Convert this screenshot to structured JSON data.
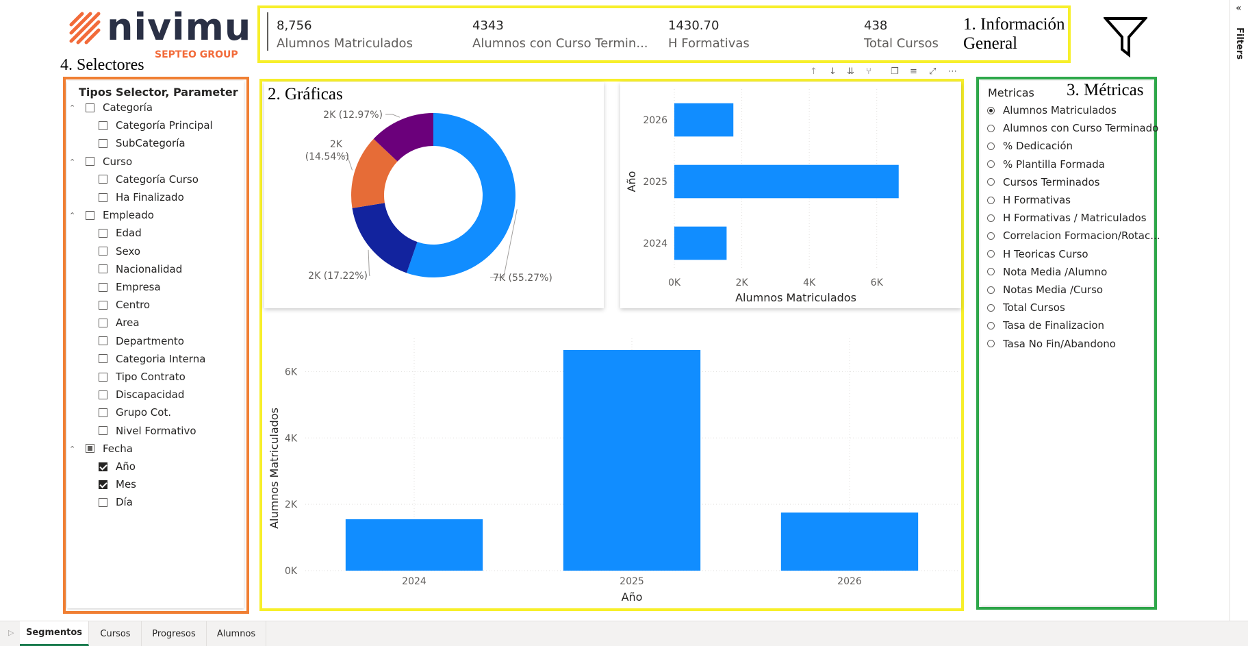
{
  "brand": {
    "name": "nivimu",
    "group": "SEPTEO GROUP",
    "stripe_color": "#f26b3a",
    "text_color": "#2a3045"
  },
  "annotations": {
    "info": "1. Información General",
    "graficas": "2. Gráficas",
    "metricas": "3. Métricas",
    "selectores": "4. Selectores"
  },
  "kpis": [
    {
      "value": "8,756",
      "label": "Alumnos Matriculados"
    },
    {
      "value": "4343",
      "label": "Alumnos con Curso Termin..."
    },
    {
      "value": "1430.70",
      "label": "H Formativas"
    },
    {
      "value": "438",
      "label": "Total Cursos"
    }
  ],
  "filter_icon": "funnel-icon",
  "filters_pane": {
    "label": "Filters",
    "chevron": "«"
  },
  "selector": {
    "title": "Tipos Selector, Parameter",
    "items": [
      {
        "label": "Categoría",
        "level": 0,
        "state": "none"
      },
      {
        "label": "Categoría Principal",
        "level": 1,
        "state": "none"
      },
      {
        "label": "SubCategoría",
        "level": 1,
        "state": "none"
      },
      {
        "label": "Curso",
        "level": 0,
        "state": "none"
      },
      {
        "label": "Categoría Curso",
        "level": 1,
        "state": "none"
      },
      {
        "label": "Ha Finalizado",
        "level": 1,
        "state": "none"
      },
      {
        "label": "Empleado",
        "level": 0,
        "state": "none"
      },
      {
        "label": "Edad",
        "level": 1,
        "state": "none"
      },
      {
        "label": "Sexo",
        "level": 1,
        "state": "none"
      },
      {
        "label": "Nacionalidad",
        "level": 1,
        "state": "none"
      },
      {
        "label": "Empresa",
        "level": 1,
        "state": "none"
      },
      {
        "label": "Centro",
        "level": 1,
        "state": "none"
      },
      {
        "label": "Area",
        "level": 1,
        "state": "none"
      },
      {
        "label": "Departmento",
        "level": 1,
        "state": "none"
      },
      {
        "label": "Categoria Interna",
        "level": 1,
        "state": "none"
      },
      {
        "label": "Tipo Contrato",
        "level": 1,
        "state": "none"
      },
      {
        "label": "Discapacidad",
        "level": 1,
        "state": "none"
      },
      {
        "label": "Grupo Cot.",
        "level": 1,
        "state": "none"
      },
      {
        "label": "Nivel Formativo",
        "level": 1,
        "state": "none"
      },
      {
        "label": "Fecha",
        "level": 0,
        "state": "partial"
      },
      {
        "label": "Año",
        "level": 1,
        "state": "checked"
      },
      {
        "label": "Mes",
        "level": 1,
        "state": "checked"
      },
      {
        "label": "Día",
        "level": 1,
        "state": "none"
      }
    ]
  },
  "metricas": {
    "title": "Metricas",
    "selected": 0,
    "items": [
      "Alumnos Matriculados",
      "Alumnos con Curso Terminado",
      "% Dedicación",
      "% Plantilla Formada",
      "Cursos Terminados",
      "H Formativas",
      "H Formativas / Matriculados",
      "Correlacion Formacion/Rotac...",
      "H Teoricas Curso",
      "Nota Media /Alumno",
      "Notas Media /Curso",
      "Total Cursos",
      "Tasa de Finalizacion",
      "Tasa No Fin/Abandono"
    ]
  },
  "visual_toolbar": [
    "arrow-up-icon",
    "arrow-down-icon",
    "double-arrow-down-icon",
    "fork-icon",
    "copy-icon",
    "filter-icon",
    "focus-icon",
    "more-icon"
  ],
  "chart_data": [
    {
      "type": "pie",
      "variant": "donut",
      "slices": [
        {
          "label": "7K (55.27%)",
          "value": 55.27,
          "color": "#118dff"
        },
        {
          "label": "2K (17.22%)",
          "value": 17.22,
          "color": "#12239e"
        },
        {
          "label": "2K (14.54%)",
          "value": 14.54,
          "color": "#e66c37"
        },
        {
          "label": "2K (12.97%)",
          "value": 12.97,
          "color": "#6b007b"
        }
      ]
    },
    {
      "type": "bar",
      "orientation": "horizontal",
      "categories": [
        "2026",
        "2025",
        "2024"
      ],
      "values": [
        1750,
        6650,
        1550
      ],
      "xlabel": "Alumnos Matriculados",
      "ylabel": "Año",
      "xlim": [
        0,
        7000
      ],
      "ticks": [
        0,
        2000,
        4000,
        6000
      ],
      "tick_labels": [
        "0K",
        "2K",
        "4K",
        "6K"
      ],
      "color": "#118dff",
      "grid": true
    },
    {
      "type": "bar",
      "orientation": "vertical",
      "categories": [
        "2024",
        "2025",
        "2026"
      ],
      "values": [
        1550,
        6650,
        1750
      ],
      "xlabel": "Año",
      "ylabel": "Alumnos Matriculados",
      "ylim": [
        0,
        7000
      ],
      "ticks": [
        0,
        2000,
        4000,
        6000
      ],
      "tick_labels": [
        "0K",
        "2K",
        "4K",
        "6K"
      ],
      "color": "#118dff",
      "grid": true
    }
  ],
  "tabs": [
    {
      "label": "Segmentos",
      "active": true
    },
    {
      "label": "Cursos",
      "active": false
    },
    {
      "label": "Progresos",
      "active": false
    },
    {
      "label": "Alumnos",
      "active": false
    }
  ]
}
